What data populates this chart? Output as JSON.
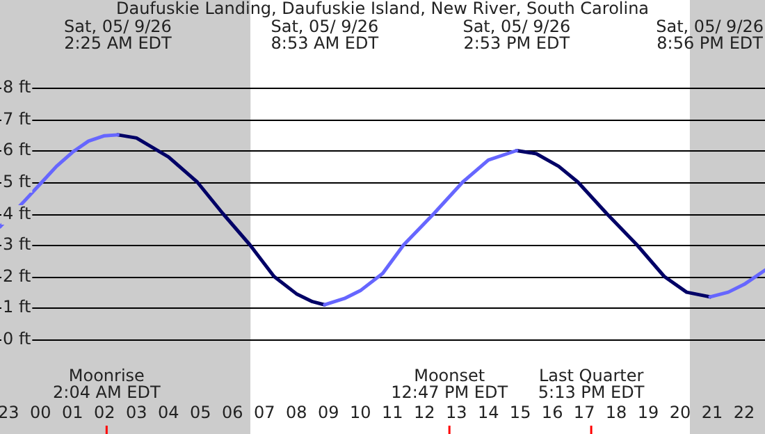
{
  "chart_data": {
    "type": "line",
    "title": "Daufuskie Landing, Daufuskie Island, New River, South Carolina",
    "xlim": [
      "--05-08T22:44",
      "--05-09T22:39"
    ],
    "xticks": [
      {
        "value": "--05-08T23:00",
        "label": "23"
      },
      {
        "value": "--05-09T00:00",
        "label": "00"
      },
      {
        "value": "--05-09T01:00",
        "label": "01"
      },
      {
        "value": "--05-09T02:00",
        "label": "02"
      },
      {
        "value": "--05-09T03:00",
        "label": "03"
      },
      {
        "value": "--05-09T04:00",
        "label": "04"
      },
      {
        "value": "--05-09T05:00",
        "label": "05"
      },
      {
        "value": "--05-09T06:00",
        "label": "06"
      },
      {
        "value": "--05-09T07:00",
        "label": "07"
      },
      {
        "value": "--05-09T08:00",
        "label": "08"
      },
      {
        "value": "--05-09T09:00",
        "label": "09"
      },
      {
        "value": "--05-09T10:00",
        "label": "10"
      },
      {
        "value": "--05-09T11:00",
        "label": "11"
      },
      {
        "value": "--05-09T12:00",
        "label": "12"
      },
      {
        "value": "--05-09T13:00",
        "label": "13"
      },
      {
        "value": "--05-09T14:00",
        "label": "14"
      },
      {
        "value": "--05-09T15:00",
        "label": "15"
      },
      {
        "value": "--05-09T16:00",
        "label": "16"
      },
      {
        "value": "--05-09T17:00",
        "label": "17"
      },
      {
        "value": "--05-09T18:00",
        "label": "18"
      },
      {
        "value": "--05-09T19:00",
        "label": "19"
      },
      {
        "value": "--05-09T20:00",
        "label": "20"
      },
      {
        "value": "--05-09T21:00",
        "label": "21"
      },
      {
        "value": "--05-09T22:00",
        "label": "22"
      }
    ],
    "ylim": [
      0,
      8
    ],
    "yticks": [
      {
        "value": 0,
        "label": "0 ft"
      },
      {
        "value": 1,
        "label": "1 ft"
      },
      {
        "value": 2,
        "label": "2 ft"
      },
      {
        "value": 3,
        "label": "3 ft"
      },
      {
        "value": 4,
        "label": "4 ft"
      },
      {
        "value": 5,
        "label": "5 ft"
      },
      {
        "value": 6,
        "label": "6 ft"
      },
      {
        "value": 7,
        "label": "7 ft"
      },
      {
        "value": 8,
        "label": "8 ft"
      }
    ],
    "grid": "y",
    "legend": false,
    "marker": "none",
    "line_style": "solid",
    "series": [
      {
        "color": "#6666ff",
        "x": [
          "--05-08T22:44",
          "--05-08T23:30",
          "--05-09T00:00",
          "--05-09T00:30",
          "--05-09T01:00",
          "--05-09T01:30",
          "--05-09T02:00",
          "--05-09T02:25",
          "--05-09T05:00",
          "--05-09T08:53",
          "--05-09T09:30",
          "--05-09T10:00",
          "--05-09T10:42",
          "--05-09T11:21",
          "--05-09T12:18",
          "--05-09T13:12",
          "--05-09T14:00",
          "--05-09T14:53",
          "--05-09T18:00",
          "--05-09T20:56",
          "--05-09T21:30",
          "--05-09T22:00",
          "--05-09T22:39"
        ],
        "values": [
          3.58,
          4.4,
          4.95,
          5.5,
          5.95,
          6.3,
          6.47,
          6.5,
          null,
          1.1,
          1.3,
          1.55,
          2.1,
          3,
          4,
          5,
          5.7,
          6.0,
          null,
          1.35,
          1.5,
          1.75,
          2.2
        ]
      },
      {
        "color": "#000066",
        "x": [
          "--05-09T02:25",
          "--05-09T03:00",
          "--05-09T04:00",
          "--05-09T04:54",
          "--05-09T05:42",
          "--05-09T06:33",
          "--05-09T07:18",
          "--05-09T08:00",
          "--05-09T08:30",
          "--05-09T08:53",
          "--05-09T12:00",
          "--05-09T14:53",
          "--05-09T15:30",
          "--05-09T16:12",
          "--05-09T16:48",
          "--05-09T17:42",
          "--05-09T18:39",
          "--05-09T19:30",
          "--05-09T20:12",
          "--05-09T20:56"
        ],
        "values": [
          6.5,
          6.4,
          5.8,
          5,
          4,
          3,
          2,
          1.45,
          1.2,
          1.1,
          null,
          6.0,
          5.9,
          5.5,
          5,
          4,
          3,
          2,
          1.5,
          1.35
        ]
      }
    ],
    "bands": [
      {
        "axis": "x",
        "from": "--05-08T22:44",
        "to": "--05-09T06:34",
        "color": "#cccccc"
      },
      {
        "axis": "x",
        "from": "--05-09T20:18",
        "to": "--05-09T22:39",
        "color": "#cccccc"
      }
    ],
    "ref_lines": [
      {
        "axis": "x",
        "value": "--05-09T02:04",
        "label": "Moonrise\n2:04 AM EDT",
        "color": "#ff0000"
      },
      {
        "axis": "x",
        "value": "--05-09T12:47",
        "label": "Moonset\n12:47 PM EDT",
        "color": "#ff0000"
      },
      {
        "axis": "x",
        "value": "--05-09T17:13",
        "label": "Last Quarter\n5:13 PM EDT",
        "color": "#ff0000"
      }
    ],
    "annotations": [
      "Sat, 05/ 9/26\n2:25 AM EDT",
      "Sat, 05/ 9/26\n8:53 AM EDT",
      "Sat, 05/ 9/26\n2:53 PM EDT",
      "Sat, 05/ 9/26\n8:56 PM EDT"
    ]
  }
}
